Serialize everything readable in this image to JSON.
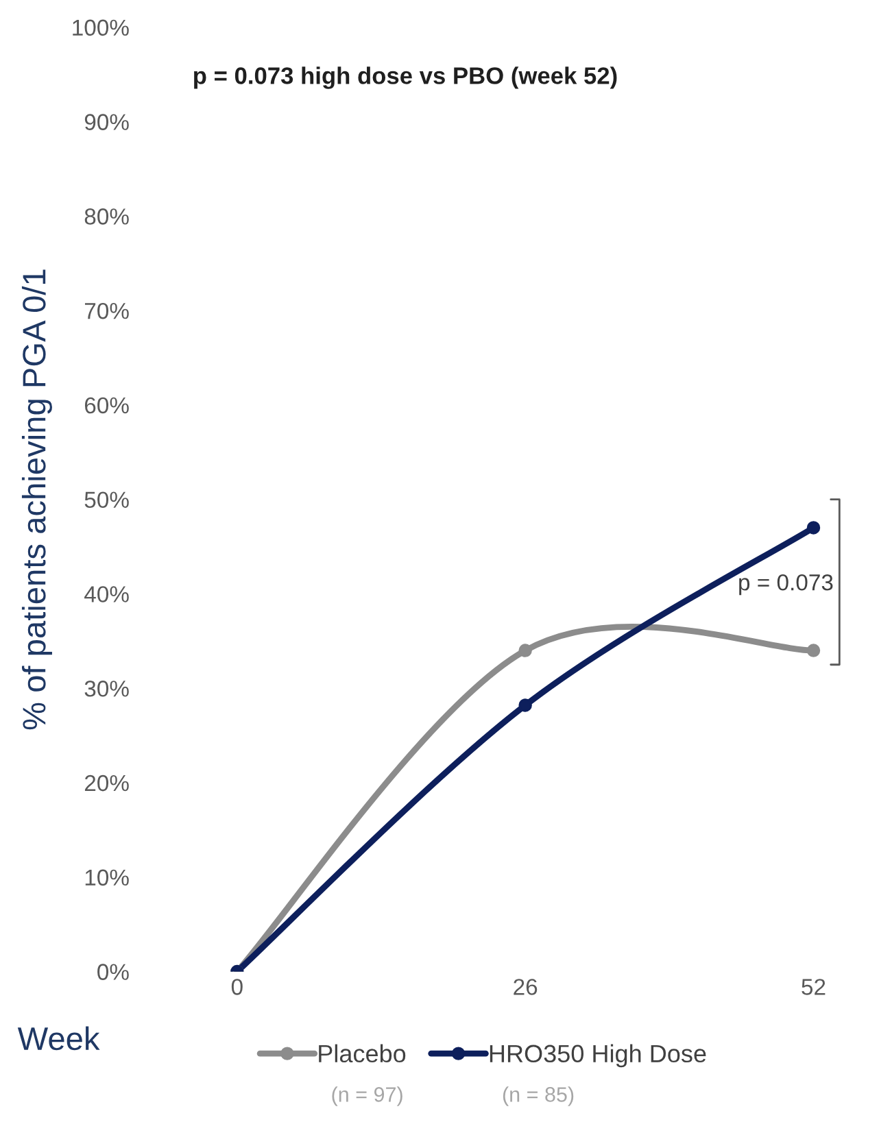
{
  "chart_data": {
    "type": "line",
    "title": "p = 0.073 high dose vs PBO (week 52)",
    "xlabel": "Week",
    "ylabel": "% of patients achieving PGA 0/1",
    "categories": [
      "0",
      "26",
      "52"
    ],
    "series": [
      {
        "name": "Placebo",
        "color": "#8c8c8c",
        "values": [
          0,
          34,
          34
        ]
      },
      {
        "name": "HRO350 High Dose",
        "color": "#0d1f5c",
        "values": [
          0,
          28.2,
          47
        ]
      }
    ],
    "ylim": [
      0,
      100
    ],
    "yticks": [
      {
        "value": 0,
        "label": "0%"
      },
      {
        "value": 10,
        "label": "10%"
      },
      {
        "value": 20,
        "label": "20%"
      },
      {
        "value": 30,
        "label": "30%"
      },
      {
        "value": 40,
        "label": "40%"
      },
      {
        "value": 50,
        "label": "50%"
      },
      {
        "value": 60,
        "label": "60%"
      },
      {
        "value": 70,
        "label": "70%"
      },
      {
        "value": 80,
        "label": "80%"
      },
      {
        "value": 90,
        "label": "90%"
      },
      {
        "value": 100,
        "label": "100%"
      }
    ],
    "annotations": [
      "p = 0.073",
      "(n = 97)",
      "(n = 85)"
    ],
    "grid": false,
    "legend": "bottom",
    "marker": "circle",
    "line_style": "solid"
  }
}
